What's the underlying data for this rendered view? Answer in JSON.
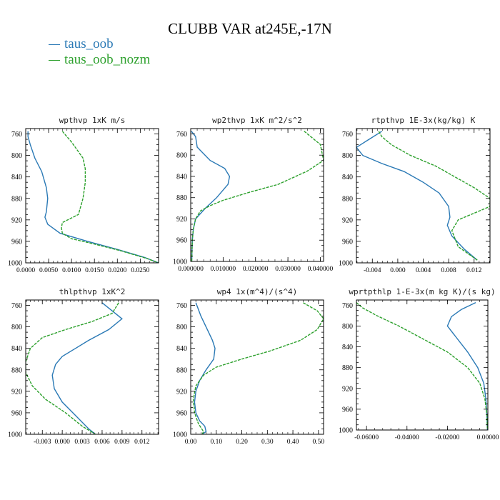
{
  "title": "CLUBB VAR at245E,-17N",
  "legend": [
    {
      "name": "taus_oob",
      "color": "#2a79b5"
    },
    {
      "name": "taus_oob_nozm",
      "color": "#2ca02c"
    }
  ],
  "chart_data": [
    {
      "type": "line",
      "title": "wpthvp   1xK m/s",
      "ylim": [
        1000,
        750
      ],
      "yticks": [
        760,
        800,
        840,
        880,
        920,
        960,
        1000
      ],
      "xlim": [
        0,
        0.029
      ],
      "xticks": [
        0.0,
        0.005,
        0.01,
        0.015,
        0.02,
        0.025
      ],
      "xticklabels": [
        "0.0000",
        "0.0050",
        "0.0100",
        "0.0150",
        "0.0200",
        "0.0250"
      ],
      "series": [
        {
          "name": "taus_oob",
          "x": [
            0.0005,
            0.0005,
            0.001,
            0.002,
            0.0035,
            0.0045,
            0.0048,
            0.0045,
            0.0042,
            0.0048,
            0.0075,
            0.0135,
            0.02,
            0.026,
            0.029
          ],
          "y": [
            755,
            765,
            780,
            805,
            830,
            860,
            880,
            905,
            915,
            928,
            945,
            960,
            975,
            990,
            1000
          ]
        },
        {
          "name": "taus_oob_nozm",
          "x": [
            0.008,
            0.01,
            0.0125,
            0.013,
            0.013,
            0.0125,
            0.0115,
            0.008,
            0.0078,
            0.008,
            0.01,
            0.015,
            0.021,
            0.0265,
            0.029
          ],
          "y": [
            755,
            775,
            805,
            825,
            850,
            880,
            910,
            925,
            935,
            945,
            955,
            965,
            978,
            992,
            1000
          ]
        }
      ]
    },
    {
      "type": "line",
      "title": "wp2thvp   1xK m^2/s^2",
      "ylim": [
        1000,
        750
      ],
      "yticks": [
        760,
        800,
        840,
        880,
        920,
        960,
        1000
      ],
      "xlim": [
        0,
        0.041
      ],
      "xticks": [
        0.0,
        0.01,
        0.02,
        0.03,
        0.04
      ],
      "xticklabels": [
        "0.000000",
        "0.010000",
        "0.020000",
        "0.030000",
        "0.040000"
      ],
      "series": [
        {
          "name": "taus_oob",
          "x": [
            0.0002,
            0.0015,
            0.002,
            0.006,
            0.0105,
            0.012,
            0.0115,
            0.008,
            0.0045,
            0.0015,
            0.0008,
            0.0005,
            0.0004,
            0.0003
          ],
          "y": [
            755,
            765,
            785,
            810,
            825,
            840,
            855,
            880,
            900,
            920,
            940,
            960,
            980,
            1000
          ]
        },
        {
          "name": "taus_oob_nozm",
          "x": [
            0.035,
            0.04,
            0.041,
            0.036,
            0.027,
            0.018,
            0.01,
            0.006,
            0.003,
            0.0015,
            0.0008,
            0.0005,
            0.0004,
            0.0003
          ],
          "y": [
            755,
            780,
            810,
            830,
            855,
            870,
            885,
            895,
            905,
            920,
            940,
            960,
            980,
            1000
          ]
        }
      ]
    },
    {
      "type": "line",
      "title": "rtpthvp   1E-3x(kg/kg) K",
      "ylim": [
        1000,
        750
      ],
      "yticks": [
        760,
        800,
        840,
        880,
        920,
        960,
        1000
      ],
      "xlim": [
        -0.0065,
        0.0145
      ],
      "xticks": [
        -0.004,
        0.0,
        0.004,
        0.008,
        0.012
      ],
      "xticklabels": [
        "-0.004",
        "0.000",
        "0.004",
        "0.008",
        "0.012"
      ],
      "series": [
        {
          "name": "taus_oob",
          "x": [
            -0.0025,
            -0.0045,
            -0.0065,
            -0.0055,
            -0.0025,
            0.001,
            0.004,
            0.0065,
            0.008,
            0.0082,
            0.0078,
            0.0085,
            0.0105,
            0.0125
          ],
          "y": [
            755,
            770,
            785,
            800,
            815,
            830,
            850,
            870,
            895,
            915,
            930,
            950,
            975,
            995
          ]
        },
        {
          "name": "taus_oob_nozm",
          "x": [
            -0.003,
            -0.0025,
            -0.001,
            0.002,
            0.006,
            0.009,
            0.012,
            0.0145,
            0.0145,
            0.0125,
            0.0095,
            0.0085,
            0.0095,
            0.0125
          ],
          "y": [
            755,
            765,
            780,
            800,
            820,
            840,
            860,
            880,
            895,
            905,
            920,
            940,
            970,
            995
          ]
        }
      ]
    },
    {
      "type": "line",
      "title": "thlpthvp   1xK^2",
      "ylim": [
        1000,
        750
      ],
      "yticks": [
        760,
        800,
        840,
        880,
        920,
        960,
        1000
      ],
      "xlim": [
        -0.0055,
        0.0145
      ],
      "xticks": [
        -0.003,
        0.0,
        0.003,
        0.006,
        0.009,
        0.012
      ],
      "xticklabels": [
        "-0.003",
        "0.000",
        "0.003",
        "0.006",
        "0.009",
        "0.012"
      ],
      "series": [
        {
          "name": "taus_oob",
          "x": [
            0.006,
            0.009,
            0.007,
            0.004,
            0.002,
            0.0,
            -0.001,
            -0.0015,
            -0.0012,
            0.0,
            0.002,
            0.004,
            0.005
          ],
          "y": [
            755,
            785,
            805,
            825,
            840,
            855,
            870,
            890,
            915,
            940,
            965,
            990,
            1000
          ]
        },
        {
          "name": "taus_oob_nozm",
          "x": [
            0.0085,
            0.0075,
            0.0045,
            0.0005,
            -0.003,
            -0.0048,
            -0.0055,
            -0.0055,
            -0.0045,
            -0.0025,
            0.0005,
            0.003,
            0.005
          ],
          "y": [
            755,
            775,
            790,
            805,
            820,
            840,
            865,
            885,
            910,
            935,
            960,
            985,
            1000
          ]
        }
      ]
    },
    {
      "type": "line",
      "title": "wp4   1x(m^4)/(s^4)",
      "ylim": [
        1000,
        750
      ],
      "yticks": [
        760,
        800,
        840,
        880,
        920,
        960,
        1000
      ],
      "xlim": [
        0,
        0.52
      ],
      "xticks": [
        0.0,
        0.1,
        0.2,
        0.3,
        0.4,
        0.5
      ],
      "xticklabels": [
        "0.00",
        "0.10",
        "0.20",
        "0.30",
        "0.40",
        "0.50"
      ],
      "series": [
        {
          "name": "taus_oob",
          "x": [
            0.02,
            0.04,
            0.065,
            0.085,
            0.095,
            0.09,
            0.06,
            0.035,
            0.02,
            0.015,
            0.02,
            0.035,
            0.055,
            0.06,
            0.045
          ],
          "y": [
            755,
            780,
            805,
            825,
            840,
            860,
            880,
            900,
            920,
            940,
            960,
            975,
            985,
            995,
            1000
          ]
        },
        {
          "name": "taus_oob_nozm",
          "x": [
            0.44,
            0.495,
            0.52,
            0.495,
            0.43,
            0.31,
            0.2,
            0.1,
            0.05,
            0.02,
            0.01,
            0.015,
            0.03,
            0.05,
            0.045
          ],
          "y": [
            755,
            770,
            785,
            805,
            825,
            845,
            860,
            875,
            890,
            910,
            935,
            960,
            980,
            995,
            1000
          ]
        }
      ]
    },
    {
      "type": "line",
      "title": "wprtpthlp   1-E-3x(m kg K)/(s kg)",
      "ylim": [
        1000,
        750
      ],
      "yticks": [
        760,
        800,
        840,
        880,
        920,
        960,
        1000
      ],
      "xlim": [
        -0.0065,
        0.0
      ],
      "xticks": [
        -0.06,
        -0.04,
        -0.02,
        0.0
      ],
      "xtickvals": [
        -0.006,
        -0.004,
        -0.002,
        0.0
      ],
      "xticklabels": [
        "-0.06000",
        "-0.04000",
        "-0.02000",
        "0.00000"
      ],
      "series": [
        {
          "name": "taus_oob",
          "x": [
            -0.0006,
            -0.0013,
            -0.0018,
            -0.002,
            -0.0016,
            -0.001,
            -0.0005,
            -0.0002,
            -0.0001,
            -5e-05,
            -2e-05
          ],
          "y": [
            755,
            768,
            782,
            800,
            820,
            850,
            880,
            910,
            940,
            970,
            1000
          ]
        },
        {
          "name": "taus_oob_nozm",
          "x": [
            -0.0065,
            -0.0062,
            -0.0055,
            -0.0044,
            -0.0032,
            -0.002,
            -0.001,
            -0.0004,
            -0.00015,
            -5e-05,
            -2e-05
          ],
          "y": [
            755,
            765,
            780,
            800,
            825,
            850,
            880,
            910,
            940,
            970,
            1000
          ]
        }
      ]
    }
  ]
}
